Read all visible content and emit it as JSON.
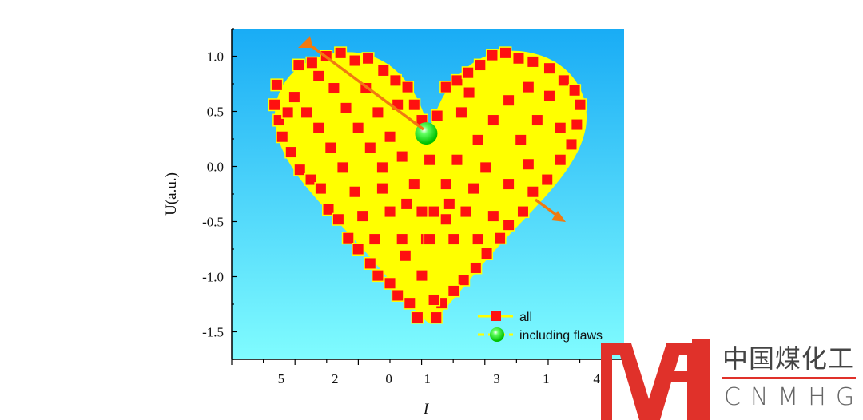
{
  "chart_data": {
    "type": "scatter",
    "xlabel": "I",
    "ylabel": "U(a.u.)",
    "ylim": [
      -1.75,
      1.25
    ],
    "xlim": [
      -1.78,
      1.79
    ],
    "y_ticks": [
      "1.0",
      "0.5",
      "0.0",
      "-0.5",
      "-1.0",
      "-1.5"
    ],
    "y_tick_values": [
      1.0,
      0.5,
      0.0,
      -0.5,
      -1.0,
      -1.5
    ],
    "x_tick_labels": [
      "5",
      "2",
      "0",
      "1",
      "3",
      "1",
      "4"
    ],
    "x_tick_values": [
      -1.33,
      -0.84,
      -0.35,
      0.0,
      0.63,
      1.08,
      1.54
    ],
    "grid": false,
    "legend_placement": "bottom-right",
    "background_gradient": [
      "#19acf5",
      "#80fcff"
    ],
    "colors": {
      "all_marker": "#ff1010",
      "all_line": "#ffff00",
      "flaw": "#10e010",
      "arrow": "#f07a10"
    },
    "series": [
      {
        "name": "all",
        "points": [
          [
            -1.37,
            0.74
          ],
          [
            -1.39,
            0.56
          ],
          [
            -1.35,
            0.42
          ],
          [
            -1.32,
            0.27
          ],
          [
            -1.24,
            0.13
          ],
          [
            -1.16,
            -0.03
          ],
          [
            -1.06,
            -0.12
          ],
          [
            -0.97,
            -0.2
          ],
          [
            -0.9,
            -0.39
          ],
          [
            -0.81,
            -0.48
          ],
          [
            -0.72,
            -0.65
          ],
          [
            -0.63,
            -0.75
          ],
          [
            -0.52,
            -0.88
          ],
          [
            -0.45,
            -0.99
          ],
          [
            -0.34,
            -1.06
          ],
          [
            -0.27,
            -1.17
          ],
          [
            -0.16,
            -1.24
          ],
          [
            -0.09,
            -1.37
          ],
          [
            0.08,
            -1.37
          ],
          [
            1.39,
            0.56
          ],
          [
            1.36,
            0.38
          ],
          [
            1.31,
            0.2
          ],
          [
            1.21,
            0.06
          ],
          [
            1.09,
            -0.12
          ],
          [
            0.96,
            -0.23
          ],
          [
            0.87,
            -0.41
          ],
          [
            0.74,
            -0.53
          ],
          [
            0.66,
            -0.65
          ],
          [
            0.54,
            -0.79
          ],
          [
            0.44,
            -0.92
          ],
          [
            0.33,
            -1.03
          ],
          [
            0.24,
            -1.13
          ],
          [
            0.13,
            -1.24
          ],
          [
            -1.17,
            0.92
          ],
          [
            -1.05,
            0.94
          ],
          [
            -0.92,
            1.0
          ],
          [
            -0.79,
            1.03
          ],
          [
            -0.66,
            0.96
          ],
          [
            -0.54,
            0.98
          ],
          [
            -0.4,
            0.87
          ],
          [
            -0.29,
            0.78
          ],
          [
            -0.18,
            0.72
          ],
          [
            -0.12,
            0.56
          ],
          [
            -0.05,
            0.42
          ],
          [
            0.09,
            0.46
          ],
          [
            0.17,
            0.72
          ],
          [
            0.27,
            0.78
          ],
          [
            0.37,
            0.85
          ],
          [
            0.48,
            0.92
          ],
          [
            0.59,
            1.01
          ],
          [
            0.71,
            1.03
          ],
          [
            0.83,
            0.98
          ],
          [
            0.96,
            0.95
          ],
          [
            1.11,
            0.89
          ],
          [
            1.24,
            0.78
          ],
          [
            1.34,
            0.69
          ],
          [
            -1.21,
            0.63
          ],
          [
            -1.1,
            0.49
          ],
          [
            -0.99,
            0.35
          ],
          [
            -0.88,
            0.17
          ],
          [
            -0.77,
            -0.01
          ],
          [
            -0.66,
            -0.23
          ],
          [
            -0.85,
            0.71
          ],
          [
            -0.74,
            0.53
          ],
          [
            -0.63,
            0.35
          ],
          [
            -0.52,
            0.17
          ],
          [
            -0.41,
            -0.01
          ],
          [
            -0.56,
            0.71
          ],
          [
            -0.45,
            0.49
          ],
          [
            -0.34,
            0.27
          ],
          [
            -0.23,
            0.09
          ],
          [
            -0.12,
            -0.16
          ],
          [
            -0.41,
            -0.2
          ],
          [
            -0.34,
            -0.41
          ],
          [
            -0.59,
            -0.45
          ],
          [
            -0.48,
            -0.66
          ],
          [
            -0.23,
            -0.66
          ],
          [
            -0.01,
            -0.66
          ],
          [
            0.02,
            -0.66
          ],
          [
            0.24,
            -0.66
          ],
          [
            0.46,
            -0.66
          ],
          [
            -0.2,
            -0.81
          ],
          [
            -0.05,
            -0.99
          ],
          [
            0.06,
            -1.21
          ],
          [
            0.17,
            -0.48
          ],
          [
            0.35,
            -0.41
          ],
          [
            0.6,
            -0.45
          ],
          [
            0.42,
            -0.2
          ],
          [
            0.74,
            -0.16
          ],
          [
            0.17,
            -0.16
          ],
          [
            0.27,
            0.06
          ],
          [
            0.46,
            0.24
          ],
          [
            0.6,
            0.42
          ],
          [
            0.74,
            0.6
          ],
          [
            0.85,
            0.24
          ],
          [
            1.0,
            0.42
          ],
          [
            1.11,
            0.64
          ],
          [
            0.92,
            0.02
          ],
          [
            1.21,
            0.35
          ],
          [
            0.53,
            -0.01
          ],
          [
            0.02,
            0.06
          ],
          [
            -0.19,
            -0.34
          ],
          [
            0.2,
            -0.34
          ],
          [
            -0.05,
            -0.41
          ],
          [
            0.06,
            -0.41
          ],
          [
            0.38,
            0.67
          ],
          [
            0.92,
            0.72
          ],
          [
            -0.99,
            0.82
          ],
          [
            -1.27,
            0.49
          ],
          [
            0.31,
            0.49
          ],
          [
            -0.27,
            0.56
          ]
        ]
      },
      {
        "name": "including flaws",
        "points": [
          [
            -0.01,
            0.3
          ]
        ]
      }
    ],
    "legend": [
      {
        "label": "all"
      },
      {
        "label": "including flaws"
      }
    ]
  },
  "logo": {
    "cn": "中国煤化工",
    "en": "CNMHG",
    "mark": "MH"
  }
}
